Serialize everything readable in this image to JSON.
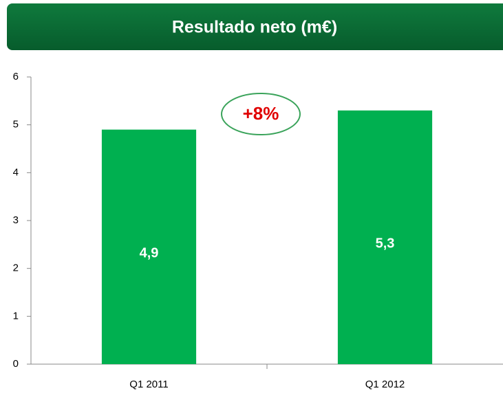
{
  "chart_data": {
    "type": "bar",
    "title": "Resultado neto (m€)",
    "annotation": "+8%",
    "categories": [
      "Q1 2011",
      "Q1 2012"
    ],
    "values": [
      4.9,
      5.3
    ],
    "value_labels": [
      "4,9",
      "5,3"
    ],
    "color": "#00b050",
    "ylim": [
      0,
      6
    ],
    "yticks": [
      0,
      1,
      2,
      3,
      4,
      5,
      6
    ],
    "grid": false
  }
}
